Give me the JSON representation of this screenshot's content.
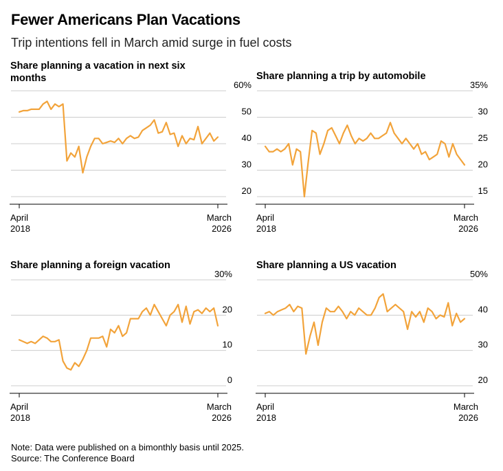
{
  "title": "Fewer Americans Plan Vacations",
  "subtitle": "Trip intentions fell in March amid surge in fuel costs",
  "footer": {
    "note": "Note: Data were published on a bimonthly basis until 2025.",
    "source": "Source: The Conference Board"
  },
  "colors": {
    "line": "#f2a33a",
    "grid": "#cccccc",
    "axis": "#000000"
  },
  "chart_data": [
    {
      "type": "line",
      "title_lines": [
        "Share planning a vacation in next six",
        "months"
      ],
      "ylim": [
        20,
        60
      ],
      "yticks": [
        20,
        30,
        40,
        50,
        60
      ],
      "ytick_labels": [
        "20",
        "30",
        "40",
        "50",
        "60%"
      ],
      "xticks": [
        {
          "lines": [
            "April",
            "2018"
          ]
        },
        {
          "lines": [
            "March",
            "2026"
          ]
        }
      ],
      "series": [
        {
          "name": "Share planning a vacation in next six months",
          "values": [
            52,
            52.5,
            52.5,
            53,
            53,
            53,
            55,
            56,
            53,
            55,
            54,
            55,
            33.5,
            36.5,
            35,
            39,
            29,
            35,
            39,
            42,
            42,
            40,
            40.5,
            41,
            40.5,
            42,
            40,
            42,
            43,
            42,
            42.5,
            45,
            46,
            47,
            49,
            44,
            44.5,
            48,
            43.5,
            44,
            39,
            43,
            40,
            42,
            41.5,
            46.5,
            40,
            42,
            44,
            41,
            42.5
          ]
        }
      ]
    },
    {
      "type": "line",
      "title_lines": [
        "Share planning a trip by automobile"
      ],
      "ylim": [
        15,
        35
      ],
      "yticks": [
        15,
        20,
        25,
        30,
        35
      ],
      "ytick_labels": [
        "15",
        "20",
        "25",
        "30",
        "35%"
      ],
      "xticks": [
        {
          "lines": [
            "April",
            "2018"
          ]
        },
        {
          "lines": [
            "March",
            "2026"
          ]
        }
      ],
      "series": [
        {
          "name": "Share planning a trip by automobile",
          "values": [
            24.5,
            23.5,
            23.5,
            24,
            23.5,
            24,
            25,
            21,
            24,
            23.5,
            15,
            21.5,
            27.5,
            27,
            23,
            25,
            27.5,
            28,
            26.5,
            25,
            27,
            28.5,
            26.5,
            25,
            26,
            25.5,
            26,
            27,
            26,
            26,
            26.5,
            27,
            29,
            27,
            26,
            25,
            26,
            25,
            24,
            25,
            23,
            23.5,
            22,
            22.5,
            23,
            25.5,
            25,
            22.5,
            25,
            23,
            22,
            21
          ]
        }
      ]
    },
    {
      "type": "line",
      "title_lines": [
        "Share planning a foreign vacation"
      ],
      "ylim": [
        0,
        30
      ],
      "yticks": [
        0,
        10,
        20,
        30
      ],
      "ytick_labels": [
        "0",
        "10",
        "20",
        "30%"
      ],
      "xticks": [
        {
          "lines": [
            "April",
            "2018"
          ]
        },
        {
          "lines": [
            "March",
            "2026"
          ]
        }
      ],
      "series": [
        {
          "name": "Share planning a foreign vacation",
          "values": [
            13,
            12.5,
            12,
            12.5,
            12,
            13,
            14,
            13.5,
            12.5,
            12.5,
            13,
            7,
            5,
            4.5,
            6.5,
            5.5,
            7.5,
            10,
            13.5,
            13.5,
            13.5,
            14,
            11,
            16,
            15,
            17,
            14,
            15,
            19,
            19,
            19,
            21,
            22,
            20,
            23,
            21,
            19,
            17,
            20,
            21,
            23,
            18,
            22.5,
            17.5,
            21,
            21.5,
            20.5,
            22,
            21,
            22,
            17
          ]
        }
      ]
    },
    {
      "type": "line",
      "title_lines": [
        "Share planning a US vacation"
      ],
      "ylim": [
        20,
        50
      ],
      "yticks": [
        20,
        30,
        40,
        50
      ],
      "ytick_labels": [
        "20",
        "30",
        "40",
        "50%"
      ],
      "xticks": [
        {
          "lines": [
            "April",
            "2018"
          ]
        },
        {
          "lines": [
            "March",
            "2026"
          ]
        }
      ],
      "series": [
        {
          "name": "Share planning a US vacation",
          "values": [
            40.5,
            41,
            40,
            41,
            41.5,
            42,
            43,
            41,
            42.5,
            42,
            29,
            34,
            38,
            31.5,
            38,
            42,
            41,
            41,
            42.5,
            41,
            39,
            41,
            40,
            42,
            41,
            40,
            40,
            42,
            45,
            46,
            41,
            42,
            43,
            42,
            41,
            36,
            41,
            39.5,
            41,
            38,
            42,
            41,
            39,
            40,
            39.5,
            43.5,
            37,
            40.5,
            38,
            39
          ]
        }
      ]
    }
  ]
}
